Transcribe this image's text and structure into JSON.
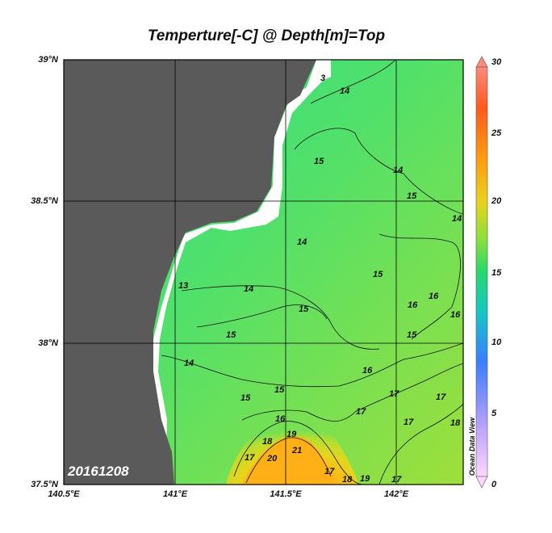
{
  "title": "Temperture[-C] @ Depth[m]=Top",
  "date_stamp": "20161208",
  "watermark": "Ocean Data View",
  "lat_labels": [
    "39°N",
    "38.5°N",
    "38°N",
    "37.5°N"
  ],
  "lon_labels": [
    "140.5°E",
    "141°E",
    "141.5°E",
    "142°E"
  ],
  "colorbar": {
    "ticks": [
      "30",
      "25",
      "20",
      "15",
      "10",
      "5",
      "0"
    ],
    "range": [
      0,
      30
    ],
    "colors": [
      "#ffd6ff",
      "#b9a3ff",
      "#3a7dff",
      "#16c6c6",
      "#26d96a",
      "#8be03c",
      "#e8d21e",
      "#ff9a12",
      "#ff5a1e",
      "#ff8a7a"
    ]
  },
  "contour_labels": [
    "3",
    "14",
    "15",
    "14",
    "15",
    "14",
    "14",
    "13",
    "14",
    "15",
    "15",
    "15",
    "16",
    "16",
    "15",
    "16",
    "14",
    "15",
    "15",
    "16",
    "17",
    "17",
    "17",
    "17",
    "18",
    "16",
    "17",
    "18",
    "19",
    "20",
    "21",
    "17",
    "18",
    "19",
    "17"
  ],
  "colors": {
    "land": "#5a5a5a",
    "ocean_base": "#3be07a",
    "warm_core": "#ffaa10"
  }
}
